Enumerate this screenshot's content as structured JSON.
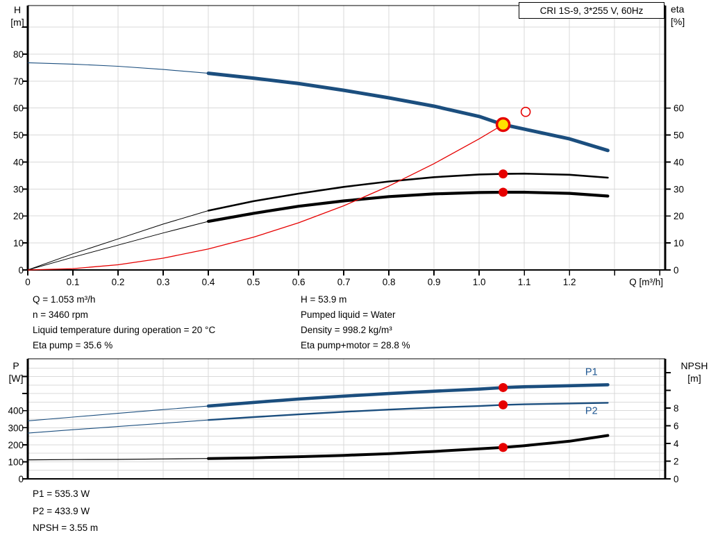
{
  "title_box": "CRI 1S-9, 3*255 V, 60Hz",
  "axes_labels": {
    "top_left": [
      "H",
      "[m]"
    ],
    "top_right": [
      "eta",
      "[%]"
    ],
    "bottom_left": [
      "P",
      "[W]"
    ],
    "bottom_right": [
      "NPSH",
      "[m]"
    ],
    "x_label": "Q [m³/h]"
  },
  "annotations": {
    "left": [
      "Q = 1.053 m³/h",
      "n = 3460 rpm",
      "Liquid temperature during operation = 20 °C",
      "Eta pump = 35.6 %"
    ],
    "right": [
      "H = 53.9 m",
      "Pumped liquid = Water",
      "Density = 998.2 kg/m³",
      "Eta pump+motor = 28.8 %"
    ],
    "bottom": [
      "P1 = 535.3 W",
      "P2 = 433.9 W",
      "NPSH = 3.55 m"
    ]
  },
  "colors": {
    "curve_blue": "#1b4e7e",
    "label_blue": "#1d5691",
    "red": "#e60000",
    "yellow": "#ffe000",
    "black": "#000000",
    "grid": "#d9d9d9",
    "axis": "#000000",
    "text": "#000000"
  },
  "chart_data": [
    {
      "type": "line",
      "title": "CRI 1S-9, 3*255 V, 60Hz",
      "xlabel": "Q [m³/h]",
      "ylabel_left": "H [m]",
      "ylabel_right": "eta [%]",
      "xlim": [
        0,
        1.412
      ],
      "ylim_left": [
        0,
        98
      ],
      "ylim_right": [
        0,
        98
      ],
      "grid": true,
      "x_ticks": [
        {
          "v": 0,
          "label": "0"
        },
        {
          "v": 0.1,
          "label": "0.1"
        },
        {
          "v": 0.2,
          "label": "0.2"
        },
        {
          "v": 0.3,
          "label": "0.3"
        },
        {
          "v": 0.4,
          "label": "0.4"
        },
        {
          "v": 0.5,
          "label": "0.5"
        },
        {
          "v": 0.6,
          "label": "0.6"
        },
        {
          "v": 0.7,
          "label": "0.7"
        },
        {
          "v": 0.8,
          "label": "0.8"
        },
        {
          "v": 0.9,
          "label": "0.9"
        },
        {
          "v": 1.0,
          "label": "1.0"
        },
        {
          "v": 1.1,
          "label": "1.1"
        },
        {
          "v": 1.2,
          "label": "1.2"
        },
        {
          "v": 1.3,
          "label": ""
        },
        {
          "v": 1.4,
          "label": ""
        }
      ],
      "y_ticks_left": [
        {
          "v": 0,
          "label": "0"
        },
        {
          "v": 10,
          "label": "10"
        },
        {
          "v": 20,
          "label": "20"
        },
        {
          "v": 30,
          "label": "30"
        },
        {
          "v": 40,
          "label": "40"
        },
        {
          "v": 50,
          "label": "50"
        },
        {
          "v": 60,
          "label": "60"
        },
        {
          "v": 70,
          "label": "70"
        },
        {
          "v": 80,
          "label": "80"
        },
        {
          "v": 90,
          "label": ""
        }
      ],
      "y_ticks_right": [
        {
          "v": 0,
          "label": "0"
        },
        {
          "v": 10,
          "label": "10"
        },
        {
          "v": 20,
          "label": "20"
        },
        {
          "v": 30,
          "label": "30"
        },
        {
          "v": 40,
          "label": "40"
        },
        {
          "v": 50,
          "label": "50"
        },
        {
          "v": 60,
          "label": "60"
        }
      ],
      "grid_v": [
        0.1,
        0.2,
        0.3,
        0.4,
        0.5,
        0.6,
        0.7,
        0.8,
        0.9,
        1.0,
        1.1,
        1.2,
        1.3,
        1.4
      ],
      "grid_h": [
        10,
        20,
        30,
        40,
        50,
        60,
        70,
        80,
        90
      ],
      "series": [
        {
          "name": "head-curve",
          "label": "H",
          "axis": "left",
          "color_key": "curve_blue",
          "thin_width": 1.1,
          "thick_width": 5,
          "split_at": 0.4,
          "x": [
            0,
            0.1,
            0.2,
            0.3,
            0.4,
            0.5,
            0.6,
            0.7,
            0.8,
            0.9,
            1.0,
            1.053,
            1.1,
            1.2,
            1.285
          ],
          "y": [
            76.8,
            76.3,
            75.5,
            74.3,
            72.9,
            71.1,
            69.1,
            66.6,
            63.8,
            60.7,
            56.9,
            53.9,
            52.2,
            48.6,
            44.3
          ]
        },
        {
          "name": "eta-pump-curve",
          "label": "Eta pump",
          "axis": "right",
          "color_key": "black",
          "thin_width": 1,
          "thick_width": 2.6,
          "split_at": 0.4,
          "x": [
            0,
            0.1,
            0.2,
            0.3,
            0.4,
            0.5,
            0.6,
            0.7,
            0.8,
            0.9,
            1.0,
            1.053,
            1.1,
            1.2,
            1.285
          ],
          "y": [
            0,
            6,
            11.5,
            17,
            22,
            25.5,
            28.3,
            30.8,
            32.8,
            34.4,
            35.4,
            35.6,
            35.7,
            35.3,
            34.2
          ]
        },
        {
          "name": "eta-pump-motor-curve",
          "label": "Eta pump+motor",
          "axis": "right",
          "color_key": "black",
          "thin_width": 1,
          "thick_width": 4.2,
          "split_at": 0.4,
          "x": [
            0,
            0.1,
            0.2,
            0.3,
            0.4,
            0.5,
            0.6,
            0.7,
            0.8,
            0.9,
            1.0,
            1.053,
            1.1,
            1.2,
            1.285
          ],
          "y": [
            0,
            4.7,
            9.2,
            13.7,
            18,
            21,
            23.6,
            25.6,
            27.2,
            28.2,
            28.7,
            28.8,
            28.8,
            28.4,
            27.4
          ]
        },
        {
          "name": "system-curve",
          "label": "System curve",
          "axis": "left",
          "color_key": "red",
          "thin_width": 1.3,
          "thick_width": 1.3,
          "split_at": null,
          "x": [
            0,
            0.1,
            0.2,
            0.3,
            0.4,
            0.5,
            0.6,
            0.7,
            0.8,
            0.9,
            1.0,
            1.053
          ],
          "y": [
            0,
            0.49,
            1.94,
            4.37,
            7.78,
            12.15,
            17.5,
            23.8,
            31.1,
            39.4,
            48.6,
            53.9
          ]
        }
      ],
      "series_labels": [],
      "markers": [
        {
          "name": "duty-point",
          "type": "target",
          "axis": "left",
          "x": 1.053,
          "y": 53.9
        },
        {
          "name": "requested-duty-point",
          "type": "open",
          "axis": "left",
          "x": 1.103,
          "y": 58.6
        },
        {
          "name": "eta-pump-point",
          "type": "dot",
          "axis": "right",
          "x": 1.053,
          "y": 35.6
        },
        {
          "name": "eta-pump-motor-point",
          "type": "dot",
          "axis": "right",
          "x": 1.053,
          "y": 28.8
        }
      ]
    },
    {
      "type": "line",
      "title": "Power and NPSH curves",
      "xlabel": "",
      "ylabel_left": "P [W]",
      "ylabel_right": "NPSH [m]",
      "xlim": [
        0,
        1.412
      ],
      "ylim_left": [
        0,
        704
      ],
      "ylim_right": [
        0,
        13.57
      ],
      "grid": true,
      "x_ticks": [],
      "y_ticks_left": [
        {
          "v": 0,
          "label": "0"
        },
        {
          "v": 100,
          "label": "100"
        },
        {
          "v": 200,
          "label": "200"
        },
        {
          "v": 300,
          "label": "300"
        },
        {
          "v": 400,
          "label": "400"
        },
        {
          "v": 500,
          "label": ""
        },
        {
          "v": 600,
          "label": ""
        }
      ],
      "y_ticks_right": [
        {
          "v": 0,
          "label": "0"
        },
        {
          "v": 2,
          "label": "2"
        },
        {
          "v": 4,
          "label": "4"
        },
        {
          "v": 6,
          "label": "6"
        },
        {
          "v": 8,
          "label": "8"
        },
        {
          "v": 10,
          "label": ""
        },
        {
          "v": 12,
          "label": ""
        }
      ],
      "grid_v": [
        0.1,
        0.2,
        0.3,
        0.4,
        0.5,
        0.6,
        0.7,
        0.8,
        0.9,
        1.0,
        1.1,
        1.2,
        1.3,
        1.4
      ],
      "grid_h": [
        50,
        100,
        150,
        200,
        250,
        300,
        350,
        400,
        450,
        500,
        550,
        600,
        650
      ],
      "series": [
        {
          "name": "p1-curve",
          "label": "P1",
          "axis": "left",
          "color_key": "curve_blue",
          "thin_width": 1.1,
          "thick_width": 4.6,
          "split_at": 0.4,
          "x": [
            0,
            0.1,
            0.2,
            0.3,
            0.4,
            0.5,
            0.6,
            0.7,
            0.8,
            0.9,
            1.0,
            1.053,
            1.1,
            1.2,
            1.285
          ],
          "y": [
            340,
            362,
            384,
            406,
            427,
            448,
            468,
            485,
            500,
            514,
            526,
            535.3,
            540,
            546,
            552
          ]
        },
        {
          "name": "p2-curve",
          "label": "P2",
          "axis": "left",
          "color_key": "curve_blue",
          "thin_width": 1.1,
          "thick_width": 2.4,
          "split_at": 0.4,
          "x": [
            0,
            0.1,
            0.2,
            0.3,
            0.4,
            0.5,
            0.6,
            0.7,
            0.8,
            0.9,
            1.0,
            1.053,
            1.1,
            1.2,
            1.285
          ],
          "y": [
            268,
            288,
            307,
            326,
            345,
            362,
            378,
            393,
            406,
            418,
            427,
            433.9,
            437,
            442,
            446
          ]
        },
        {
          "name": "npsh-curve",
          "label": "NPSH",
          "axis": "right",
          "color_key": "black",
          "thin_width": 1.2,
          "thick_width": 4,
          "split_at": 0.4,
          "x": [
            0,
            0.1,
            0.2,
            0.3,
            0.4,
            0.5,
            0.6,
            0.7,
            0.8,
            0.9,
            1.0,
            1.053,
            1.1,
            1.2,
            1.285
          ],
          "y": [
            2.15,
            2.18,
            2.2,
            2.25,
            2.3,
            2.38,
            2.5,
            2.65,
            2.85,
            3.1,
            3.4,
            3.55,
            3.75,
            4.25,
            4.9
          ]
        }
      ],
      "series_labels": [
        {
          "text": "P1",
          "x": 1.235,
          "y": 608,
          "axis": "left"
        },
        {
          "text": "P2",
          "x": 1.235,
          "y": 380,
          "axis": "left"
        }
      ],
      "markers": [
        {
          "name": "p1-point",
          "type": "dot",
          "axis": "left",
          "x": 1.053,
          "y": 535.3
        },
        {
          "name": "p2-point",
          "type": "dot",
          "axis": "left",
          "x": 1.053,
          "y": 433.9
        },
        {
          "name": "npsh-point",
          "type": "dot",
          "axis": "right",
          "x": 1.053,
          "y": 3.55
        }
      ]
    }
  ]
}
